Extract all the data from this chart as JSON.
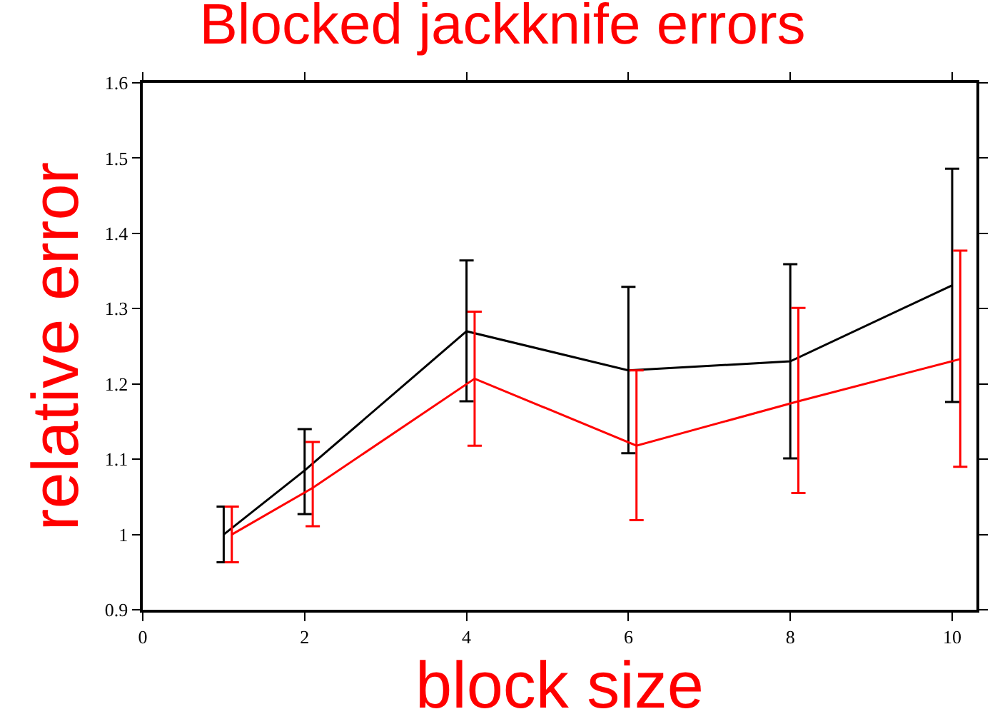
{
  "chart_data": {
    "type": "line",
    "title": "Blocked jackknife errors",
    "xlabel": "block size",
    "ylabel": "relative error",
    "xlim": [
      0,
      10.3
    ],
    "ylim": [
      0.9,
      1.6
    ],
    "xticks": [
      0,
      2,
      4,
      6,
      8,
      10
    ],
    "yticks": [
      0.9,
      1,
      1.1,
      1.2,
      1.3,
      1.4,
      1.5,
      1.6
    ],
    "marker": "none",
    "line_style": "solid",
    "series": [
      {
        "color": "#000000",
        "x": [
          1,
          2,
          4,
          6,
          8,
          10
        ],
        "values": [
          1.0,
          1.085,
          1.27,
          1.218,
          1.23,
          1.331
        ],
        "errors": [
          [
            0.963,
            1.037
          ],
          [
            1.027,
            1.14
          ],
          [
            1.177,
            1.364
          ],
          [
            1.108,
            1.329
          ],
          [
            1.101,
            1.359
          ],
          [
            1.176,
            1.486
          ]
        ]
      },
      {
        "color": "#ff0000",
        "x": [
          1.1,
          2.1,
          4.1,
          6.1,
          8.1,
          10.1
        ],
        "values": [
          1.0,
          1.062,
          1.207,
          1.118,
          1.177,
          1.233
        ],
        "errors": [
          [
            0.963,
            1.037
          ],
          [
            1.011,
            1.123
          ],
          [
            1.118,
            1.296
          ],
          [
            1.019,
            1.218
          ],
          [
            1.055,
            1.301
          ],
          [
            1.09,
            1.377
          ]
        ]
      }
    ]
  }
}
